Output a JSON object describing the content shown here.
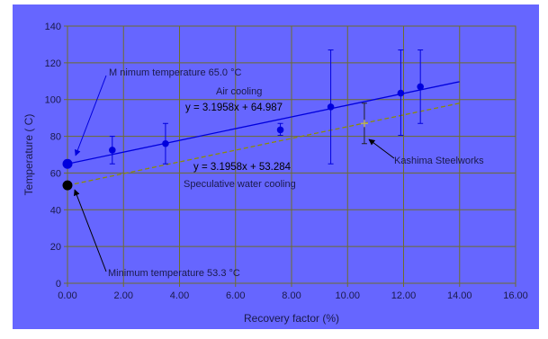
{
  "chart_data": {
    "type": "scatter",
    "xlabel": "Recovery factor (%)",
    "ylabel": "Temperature ( C)",
    "xlim": [
      0,
      16
    ],
    "ylim": [
      0,
      140
    ],
    "x_ticks": [
      "0.00",
      "2.00",
      "4.00",
      "6.00",
      "8.00",
      "10.00",
      "12.00",
      "14.00",
      "16.00"
    ],
    "y_ticks": [
      "0",
      "20",
      "40",
      "60",
      "80",
      "100",
      "120",
      "140"
    ],
    "grid": true,
    "colors": {
      "background": "#ffffff",
      "plot_area": "#6666ff",
      "grid": "#6e6e2a",
      "air_series": "#0000dd",
      "water_series": "#8c8c00",
      "kashima": "#b8b060",
      "minimum_point": "#000000"
    },
    "series": [
      {
        "points": [
          {
            "x": 0.0,
            "y": 65.0,
            "err_low": 65.0,
            "err_high": 65.0
          },
          {
            "x": 1.6,
            "y": 72.5,
            "err_low": 65.0,
            "err_high": 80.0
          },
          {
            "x": 3.5,
            "y": 76.0,
            "err_low": 65.0,
            "err_high": 87.0
          },
          {
            "x": 7.6,
            "y": 83.5,
            "err_low": 80.5,
            "err_high": 87.0
          },
          {
            "x": 9.4,
            "y": 96.0,
            "err_low": 65.0,
            "err_high": 127.0
          },
          {
            "x": 11.9,
            "y": 103.5,
            "err_low": 80.5,
            "err_high": 127.0
          },
          {
            "x": 12.6,
            "y": 107.0,
            "err_low": 87.0,
            "err_high": 127.0
          }
        ],
        "trendline": {
          "slope": 3.1958,
          "intercept": 64.987,
          "x_range": [
            0,
            14
          ]
        }
      },
      {
        "points": [
          {
            "x": 0.0,
            "y": 53.3
          }
        ],
        "trendline": {
          "slope": 3.1958,
          "intercept": 53.284,
          "x_range": [
            0,
            14
          ],
          "dashed": true
        }
      },
      {
        "points": [
          {
            "x": 10.6,
            "y": 87.0,
            "err_low": 76.0,
            "err_high": 98.0
          }
        ]
      }
    ],
    "annotations": {
      "air_label": "Air cooling",
      "air_equation": "y = 3.1958x + 64.987",
      "water_equation": "y = 3.1958x + 53.284",
      "water_label": "Speculative water cooling",
      "min_air": "M nimum temperature 65.0 °C",
      "min_water": "Minimum temperature 53.3 °C",
      "kashima": "Kashima Steelworks"
    }
  }
}
